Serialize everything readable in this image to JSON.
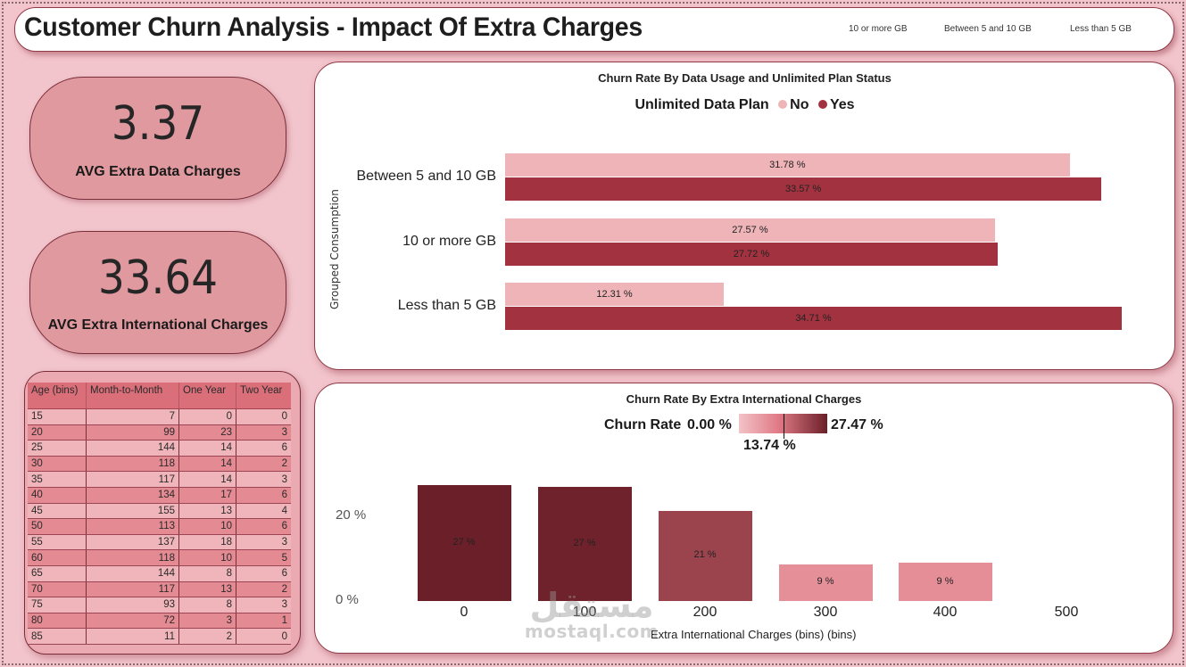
{
  "header": {
    "title": "Customer Churn Analysis - Impact Of Extra Charges",
    "slicer_items": [
      "10 or more GB",
      "Between 5 and 10 GB",
      "Less than 5 GB"
    ]
  },
  "kpis": [
    {
      "value": "3.37",
      "label": "AVG Extra Data Charges"
    },
    {
      "value": "33.64",
      "label": "AVG Extra International Charges"
    }
  ],
  "age_table": {
    "columns": [
      "Age (bins)",
      "Month-to-Month",
      "One Year",
      "Two Year"
    ],
    "rows": [
      [
        "15",
        "7",
        "0",
        "0"
      ],
      [
        "20",
        "99",
        "23",
        "3"
      ],
      [
        "25",
        "144",
        "14",
        "6"
      ],
      [
        "30",
        "118",
        "14",
        "2"
      ],
      [
        "35",
        "117",
        "14",
        "3"
      ],
      [
        "40",
        "134",
        "17",
        "6"
      ],
      [
        "45",
        "155",
        "13",
        "4"
      ],
      [
        "50",
        "113",
        "10",
        "6"
      ],
      [
        "55",
        "137",
        "18",
        "3"
      ],
      [
        "60",
        "118",
        "10",
        "5"
      ],
      [
        "65",
        "144",
        "8",
        "6"
      ],
      [
        "70",
        "117",
        "13",
        "2"
      ],
      [
        "75",
        "93",
        "8",
        "3"
      ],
      [
        "80",
        "72",
        "3",
        "1"
      ],
      [
        "85",
        "11",
        "2",
        "0"
      ]
    ]
  },
  "colors": {
    "page_bg": "#f2c4cb",
    "no_series": "#efb4b8",
    "yes_series": "#a2323f",
    "gradient_low": "#f2c3c7",
    "gradient_mid": "#e07a86",
    "gradient_high": "#6b1f28"
  },
  "chart_data": [
    {
      "type": "bar",
      "orientation": "horizontal",
      "title": "Churn Rate By Data Usage and Unlimited Plan Status",
      "legend_title": "Unlimited Data Plan",
      "legend_position": "top-center",
      "ylabel": "Grouped Consumption",
      "xlabel": "",
      "categories": [
        "Between 5 and 10 GB",
        "10 or more GB",
        "Less than 5 GB"
      ],
      "series": [
        {
          "name": "No",
          "values": [
            31.78,
            27.57,
            12.31
          ],
          "labels": [
            "31.78 %",
            "27.57 %",
            "12.31 %"
          ]
        },
        {
          "name": "Yes",
          "values": [
            33.57,
            27.72,
            34.71
          ],
          "labels": [
            "33.57 %",
            "27.72 %",
            "34.71 %"
          ]
        }
      ],
      "xlim": [
        0,
        34.71
      ],
      "grid": false
    },
    {
      "type": "bar",
      "orientation": "vertical",
      "title": "Churn Rate By Extra International Charges",
      "legend_title": "Churn Rate",
      "legend_position": "top-center",
      "color_scale": {
        "min_label": "0.00 %",
        "mid_label": "13.74 %",
        "max_label": "27.47 %",
        "min": 0,
        "mid": 13.74,
        "max": 27.47
      },
      "xlabel": "Extra International Charges (bins) (bins)",
      "ylabel": "",
      "categories": [
        "0",
        "100",
        "200",
        "300",
        "400",
        "500"
      ],
      "values": [
        27.47,
        27.0,
        21.3,
        8.7,
        9.0,
        null
      ],
      "labels": [
        "27 %",
        "27 %",
        "21 %",
        "9 %",
        "9 %",
        ""
      ],
      "yticks": [
        "0 %",
        "20 %"
      ],
      "ylim": [
        0,
        27.47
      ],
      "grid": false
    }
  ],
  "watermark": {
    "arabic": "مستقل",
    "latin": "mostaql.com"
  }
}
